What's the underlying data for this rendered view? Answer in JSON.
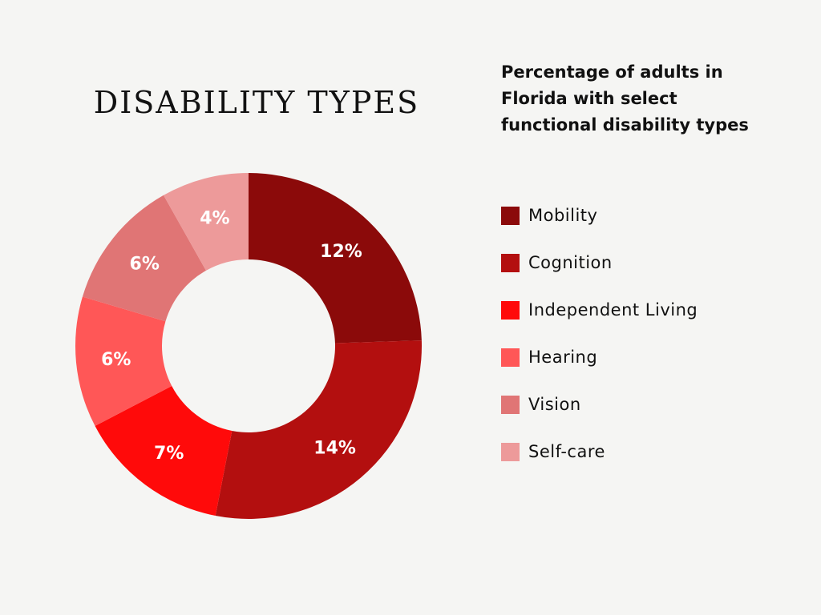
{
  "chart_data": {
    "type": "pie",
    "style": "donut",
    "title": "DISABILITY TYPES",
    "subtitle": "Percentage of adults in Florida with select functional disability types",
    "legend_position": "right",
    "categories": [
      "Mobility",
      "Cognition",
      "Independent Living",
      "Hearing",
      "Vision",
      "Self-care"
    ],
    "values": [
      12,
      14,
      7,
      6,
      6,
      4
    ],
    "labels": [
      "12%",
      "14%",
      "7%",
      "6%",
      "6%",
      "4%"
    ],
    "colors": [
      "#8b0a0a",
      "#b30f0f",
      "#ff0a0a",
      "#ff5757",
      "#e07575",
      "#ed9a9a"
    ]
  }
}
